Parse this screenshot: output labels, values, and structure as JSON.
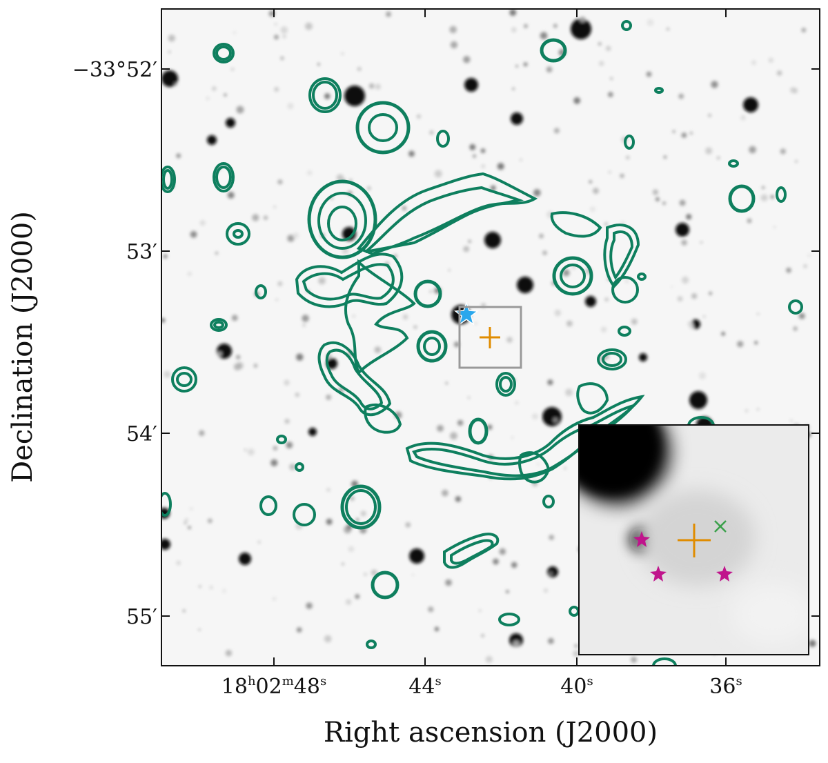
{
  "figure": {
    "x_axis_label": "Right ascension (J2000)",
    "y_axis_label": "Declination (J2000)",
    "ra_ticks": [
      {
        "h": "18",
        "m": "02",
        "s": "48",
        "main": "18",
        "sup1": "h",
        "mid": "02",
        "sup2": "m",
        "tail": "48",
        "sup3": "s"
      },
      {
        "main": "44",
        "sup": "s"
      },
      {
        "main": "40",
        "sup": "s"
      },
      {
        "main": "36",
        "sup": "s"
      }
    ],
    "dec_ticks": [
      "−33°52′",
      "53′",
      "54′",
      "55′"
    ],
    "colors": {
      "contour": "#0e7f5e",
      "orange_cross": "#e08c00",
      "blue_star": "#2aa7ec",
      "magenta_star": "#c0148c",
      "green_x": "#3aa04a",
      "box": "#999999",
      "frame": "#111111"
    }
  }
}
